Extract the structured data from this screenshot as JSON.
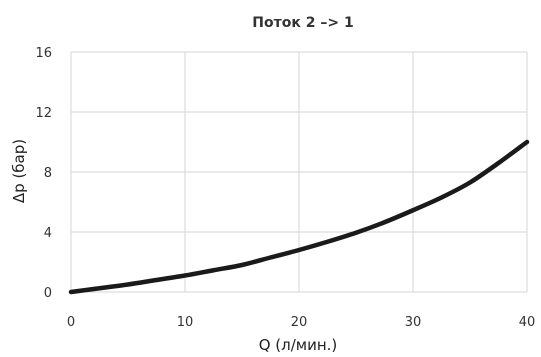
{
  "chart_data": {
    "type": "line",
    "title": "Поток 2 –> 1",
    "xlabel": "Q (л/мин.)",
    "ylabel": "Δp (бар)",
    "xlim": [
      0,
      40
    ],
    "ylim": [
      0,
      16
    ],
    "x_ticks": [
      "0",
      "10",
      "20",
      "30",
      "40"
    ],
    "y_ticks": [
      "0",
      "4",
      "8",
      "12",
      "16"
    ],
    "grid": true,
    "line_color": "#1a1a1a",
    "grid_color": "#d4d4d4",
    "series": [
      {
        "x": [
          0,
          2.5,
          5,
          7.5,
          10,
          12.5,
          15,
          17.5,
          20,
          22.5,
          25,
          27.5,
          30,
          32.5,
          35,
          37.5,
          40
        ],
        "values": [
          0,
          0.25,
          0.5,
          0.8,
          1.1,
          1.45,
          1.8,
          2.3,
          2.8,
          3.35,
          3.95,
          4.65,
          5.45,
          6.3,
          7.3,
          8.6,
          10.0
        ]
      }
    ]
  }
}
